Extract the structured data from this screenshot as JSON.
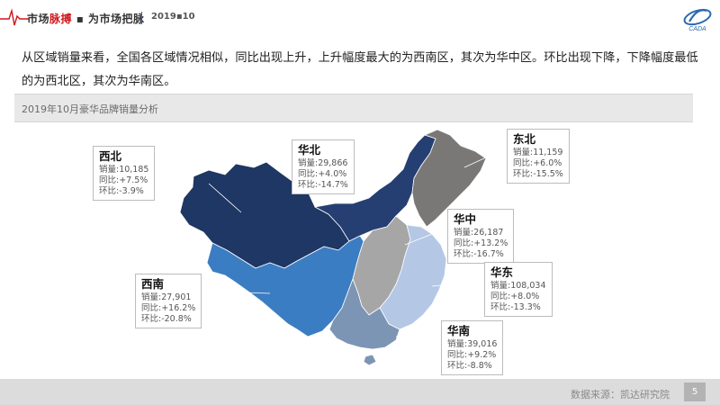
{
  "header": {
    "brand_part1": "市场",
    "brand_part2": "脉搏",
    "brand_part3": "▪ 为市场把脉",
    "date": "2019▪10",
    "logo_text": "CADA"
  },
  "intro": "从区域销量来看，全国各区域情况相似，同比出现上升，上升幅度最大的为西南区，其次为华中区。环比出现下降，下降幅度最低的为西北区，其次为华南区。",
  "banner": {
    "title": "2019年10月豪华品牌销量分析"
  },
  "colors": {
    "northwest": "#1f3764",
    "north": "#253f72",
    "northeast": "#7a7777",
    "central": "#a7a6a7",
    "southwest": "#3b7dc3",
    "east": "#b4c7e5",
    "south": "#7d95b4",
    "accent_red": "#d0171b"
  },
  "regions": [
    {
      "key": "northwest",
      "name": "西北",
      "sales": "销量:10,185",
      "yoy": "同比:+7.5%",
      "mom": "环比:-3.9%"
    },
    {
      "key": "north",
      "name": "华北",
      "sales": "销量:29,866",
      "yoy": "同比:+4.0%",
      "mom": "环比:-14.7%"
    },
    {
      "key": "northeast",
      "name": "东北",
      "sales": "销量:11,159",
      "yoy": "同比:+6.0%",
      "mom": "环比:-15.5%"
    },
    {
      "key": "central",
      "name": "华中",
      "sales": "销量:26,187",
      "yoy": "同比:+13.2%",
      "mom": "环比:-16.7%"
    },
    {
      "key": "southwest",
      "name": "西南",
      "sales": "销量:27,901",
      "yoy": "同比:+16.2%",
      "mom": "环比:-20.8%"
    },
    {
      "key": "east",
      "name": "华东",
      "sales": "销量:108,034",
      "yoy": "同比:+8.0%",
      "mom": "环比:-13.3%"
    },
    {
      "key": "south",
      "name": "华南",
      "sales": "销量:39,016",
      "yoy": "同比:+9.2%",
      "mom": "环比:-8.8%"
    }
  ],
  "footer": {
    "source": "数据来源：凯达研究院",
    "page": "5"
  }
}
